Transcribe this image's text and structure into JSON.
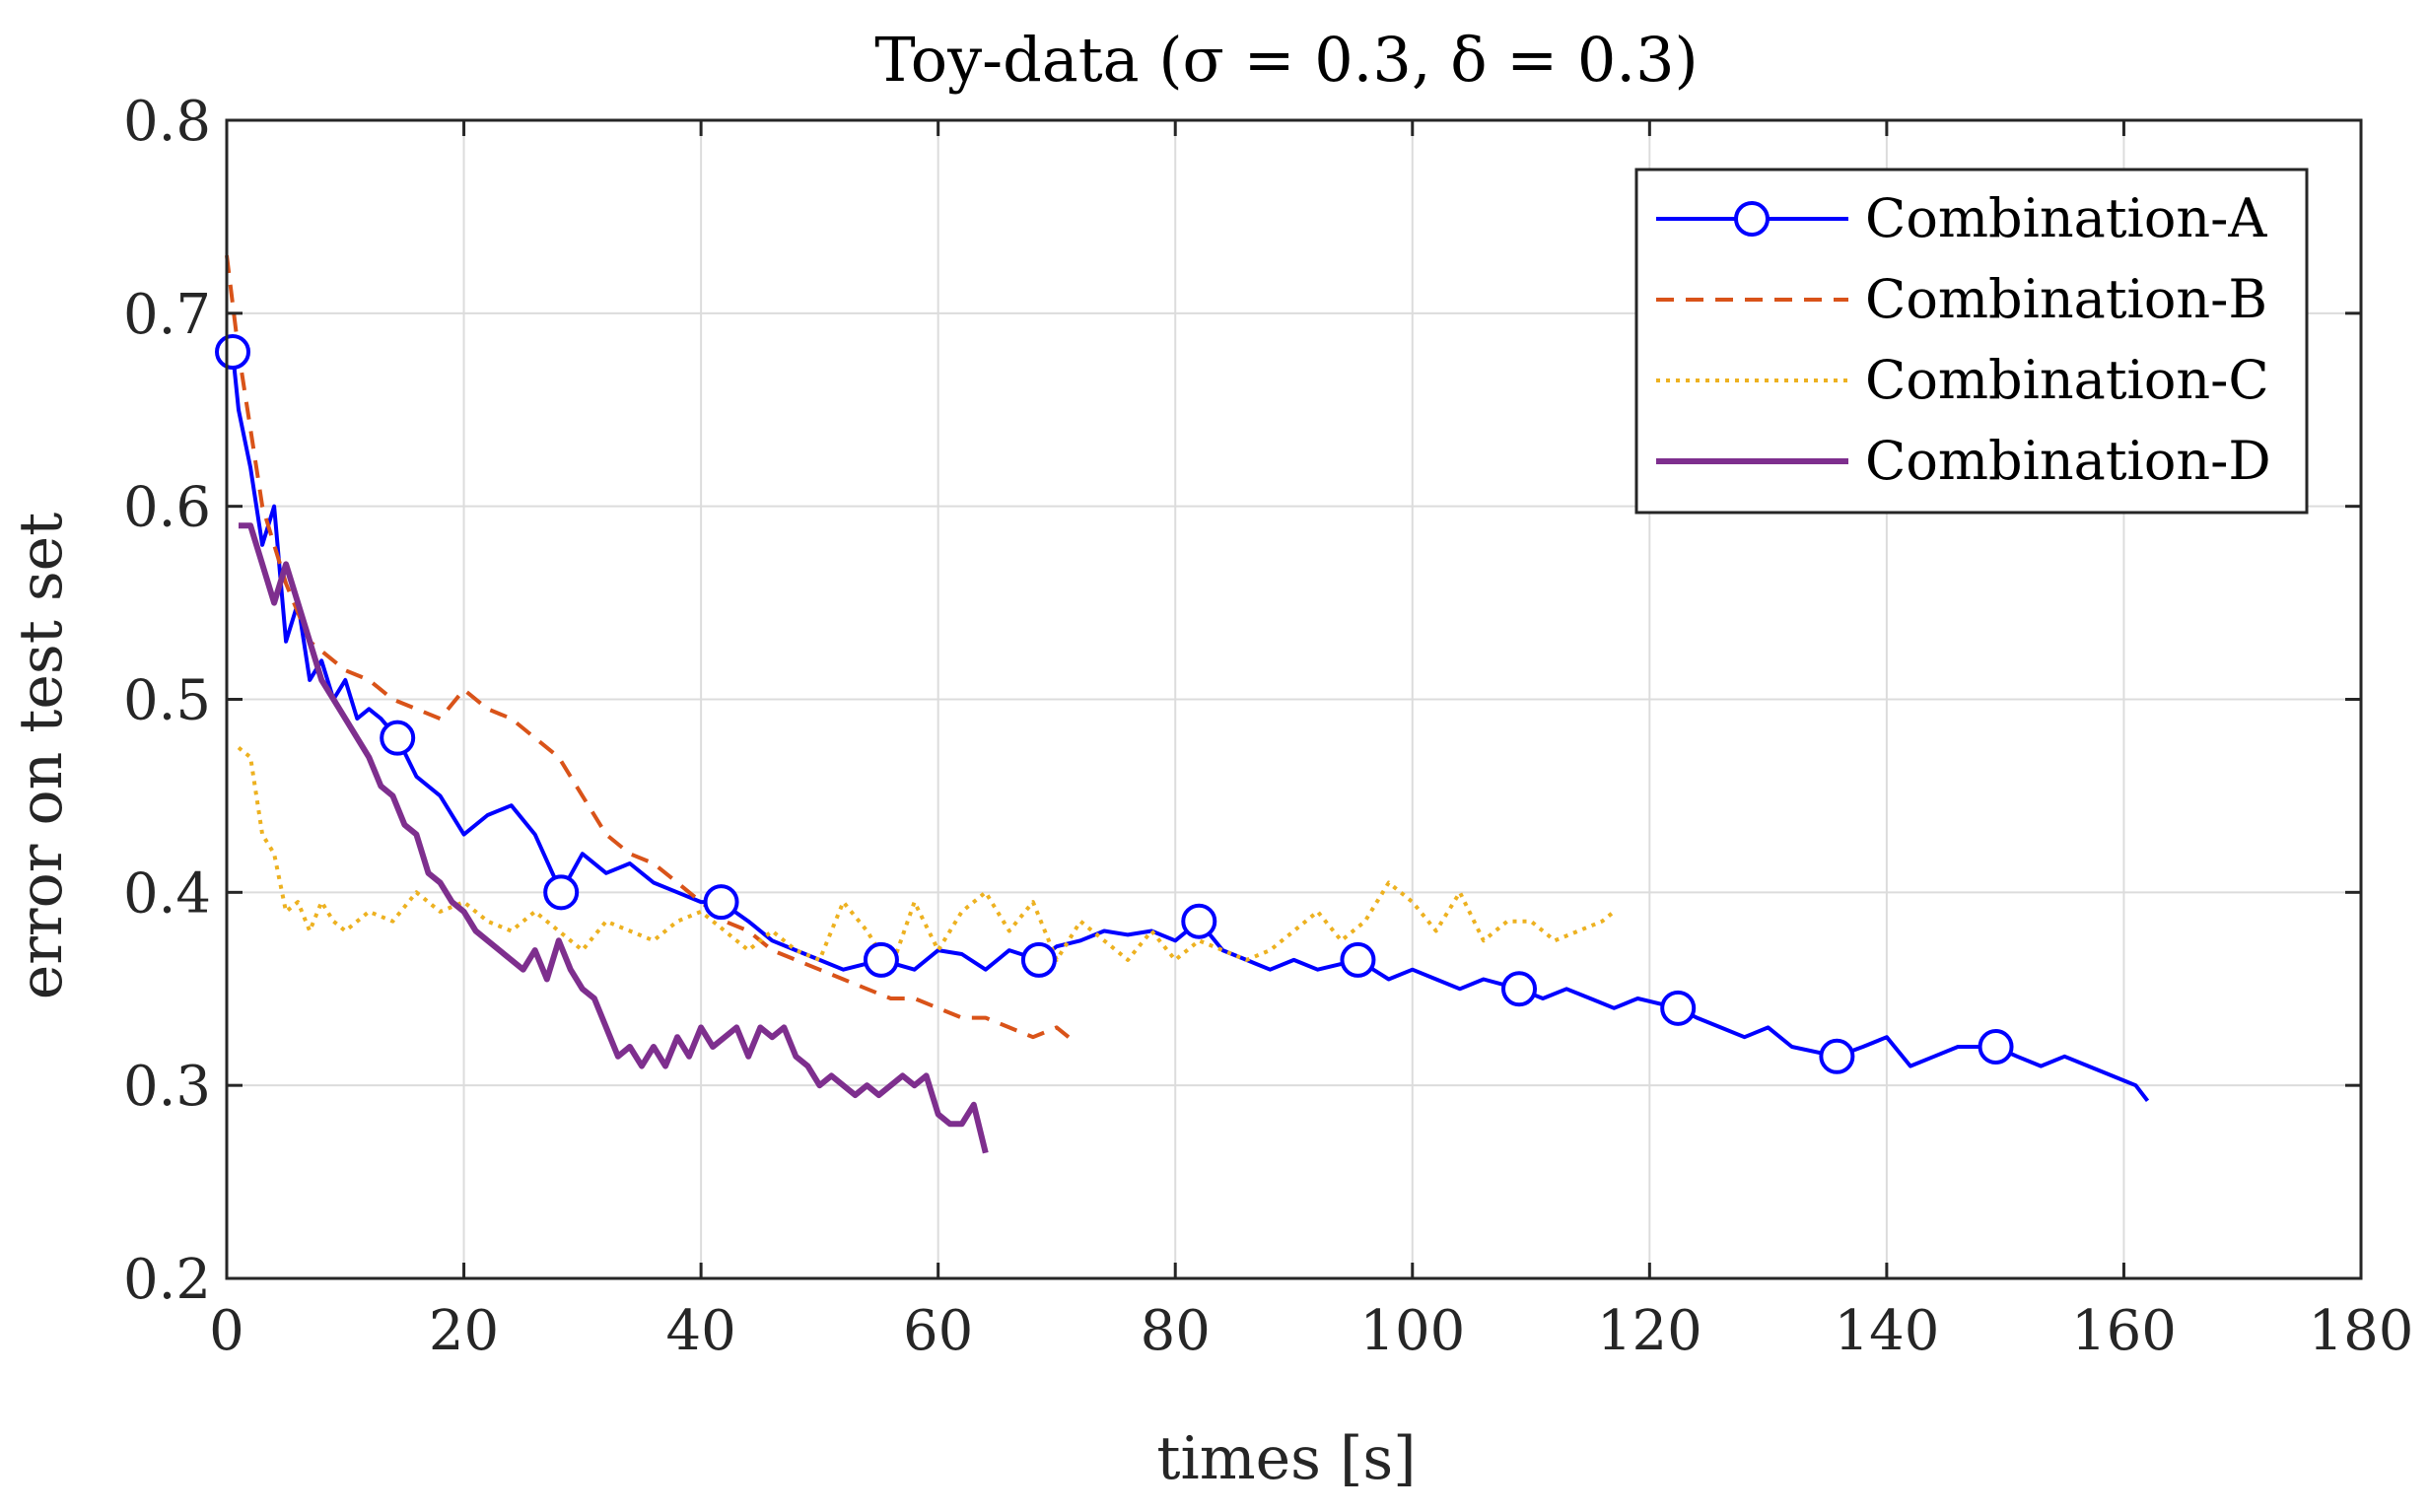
{
  "chart_data": {
    "type": "line",
    "title": "Toy-data (σ = 0.3, δ = 0.3)",
    "xlabel": "times [s]",
    "ylabel": "error on test set",
    "xlim": [
      0,
      180
    ],
    "ylim": [
      0.2,
      0.8
    ],
    "xticks": [
      0,
      20,
      40,
      60,
      80,
      100,
      120,
      140,
      160,
      180
    ],
    "yticks": [
      0.2,
      0.3,
      0.4,
      0.5,
      0.6,
      0.7,
      0.8
    ],
    "xtick_labels": [
      "0",
      "20",
      "40",
      "60",
      "80",
      "100",
      "120",
      "140",
      "160",
      "180"
    ],
    "ytick_labels": [
      "0.2",
      "0.3",
      "0.4",
      "0.5",
      "0.6",
      "0.7",
      "0.8"
    ],
    "grid": true,
    "legend_position": "top-right",
    "series": [
      {
        "name": "Combination-A",
        "color": "#0000ff",
        "style": "solid-circle",
        "x": [
          0.5,
          1,
          2,
          3,
          4,
          5,
          6,
          7,
          8,
          9,
          10,
          11,
          12,
          13,
          14.4,
          16,
          18,
          20,
          22,
          24,
          26,
          28.2,
          30,
          32,
          34,
          36,
          38,
          40,
          41.7,
          44,
          46,
          48,
          50,
          52,
          55.2,
          58,
          60,
          62,
          64,
          66,
          68.5,
          70,
          72,
          74,
          76,
          78,
          80,
          82,
          84,
          86,
          88,
          90,
          92,
          95.4,
          98,
          100,
          102,
          104,
          106,
          109,
          111,
          113,
          115,
          117,
          119,
          122.4,
          124,
          126,
          128,
          130,
          132,
          135.8,
          138,
          140,
          142,
          144,
          146,
          149.2,
          151,
          153,
          155,
          157,
          159,
          161,
          162
        ],
        "y": [
          0.68,
          0.65,
          0.62,
          0.58,
          0.6,
          0.53,
          0.55,
          0.51,
          0.52,
          0.5,
          0.51,
          0.49,
          0.495,
          0.49,
          0.48,
          0.46,
          0.45,
          0.43,
          0.44,
          0.445,
          0.43,
          0.4,
          0.42,
          0.41,
          0.415,
          0.405,
          0.4,
          0.395,
          0.395,
          0.385,
          0.375,
          0.37,
          0.365,
          0.36,
          0.365,
          0.36,
          0.37,
          0.368,
          0.36,
          0.37,
          0.365,
          0.372,
          0.375,
          0.38,
          0.378,
          0.38,
          0.375,
          0.385,
          0.37,
          0.365,
          0.36,
          0.365,
          0.36,
          0.365,
          0.355,
          0.36,
          0.355,
          0.35,
          0.355,
          0.35,
          0.345,
          0.35,
          0.345,
          0.34,
          0.345,
          0.34,
          0.335,
          0.33,
          0.325,
          0.33,
          0.32,
          0.315,
          0.32,
          0.325,
          0.31,
          0.315,
          0.32,
          0.32,
          0.315,
          0.31,
          0.315,
          0.31,
          0.305,
          0.3,
          0.292
        ]
      },
      {
        "name": "Combination-B",
        "color": "#d95319",
        "style": "dashed",
        "x": [
          0,
          1,
          2,
          3,
          4,
          5,
          6,
          7,
          8,
          10,
          12,
          14,
          16,
          18,
          20,
          22,
          24,
          26,
          28,
          30,
          32,
          34,
          36,
          38,
          40,
          42,
          44,
          46,
          48,
          50,
          52,
          54,
          56,
          58,
          60,
          62,
          64,
          66,
          68,
          70,
          71
        ],
        "y": [
          0.73,
          0.68,
          0.64,
          0.6,
          0.58,
          0.56,
          0.545,
          0.53,
          0.525,
          0.515,
          0.51,
          0.5,
          0.495,
          0.49,
          0.505,
          0.495,
          0.49,
          0.48,
          0.47,
          0.45,
          0.43,
          0.42,
          0.415,
          0.405,
          0.395,
          0.385,
          0.38,
          0.37,
          0.365,
          0.36,
          0.355,
          0.35,
          0.345,
          0.345,
          0.34,
          0.335,
          0.335,
          0.33,
          0.325,
          0.33,
          0.325
        ]
      },
      {
        "name": "Combination-C",
        "color": "#edb120",
        "style": "dotted",
        "x": [
          1,
          2,
          3,
          4,
          5,
          6,
          7,
          8,
          9,
          10,
          12,
          14,
          16,
          18,
          20,
          22,
          24,
          26,
          28,
          30,
          32,
          34,
          36,
          38,
          40,
          42,
          44,
          46,
          48,
          50,
          52,
          54,
          56,
          58,
          60,
          62,
          64,
          66,
          68,
          70,
          72,
          74,
          76,
          78,
          80,
          82,
          84,
          86,
          88,
          90,
          92,
          94,
          96,
          98,
          100,
          102,
          104,
          106,
          108,
          110,
          112,
          114,
          116,
          117
        ],
        "y": [
          0.475,
          0.47,
          0.43,
          0.42,
          0.39,
          0.395,
          0.38,
          0.395,
          0.385,
          0.38,
          0.39,
          0.385,
          0.4,
          0.39,
          0.395,
          0.385,
          0.38,
          0.39,
          0.38,
          0.37,
          0.385,
          0.38,
          0.375,
          0.385,
          0.39,
          0.38,
          0.37,
          0.38,
          0.37,
          0.365,
          0.395,
          0.38,
          0.36,
          0.395,
          0.37,
          0.39,
          0.4,
          0.38,
          0.395,
          0.365,
          0.385,
          0.375,
          0.365,
          0.38,
          0.365,
          0.375,
          0.37,
          0.365,
          0.37,
          0.38,
          0.39,
          0.375,
          0.385,
          0.405,
          0.395,
          0.38,
          0.4,
          0.375,
          0.385,
          0.385,
          0.375,
          0.38,
          0.385,
          0.39
        ]
      },
      {
        "name": "Combination-D",
        "color": "#7e2f8e",
        "style": "solid",
        "x": [
          1,
          2,
          3,
          4,
          5,
          6,
          7,
          8,
          9,
          10,
          11,
          12,
          13,
          14,
          15,
          16,
          17,
          18,
          19,
          20,
          21,
          22,
          23,
          24,
          25,
          26,
          27,
          28,
          29,
          30,
          31,
          32,
          33,
          34,
          35,
          36,
          37,
          38,
          39,
          40,
          41,
          42,
          43,
          44,
          45,
          46,
          47,
          48,
          49,
          50,
          51,
          52,
          53,
          54,
          55,
          56,
          57,
          58,
          59,
          60,
          61,
          62,
          63,
          64
        ],
        "y": [
          0.59,
          0.59,
          0.57,
          0.55,
          0.57,
          0.55,
          0.53,
          0.51,
          0.5,
          0.49,
          0.48,
          0.47,
          0.455,
          0.45,
          0.435,
          0.43,
          0.41,
          0.405,
          0.395,
          0.39,
          0.38,
          0.375,
          0.37,
          0.365,
          0.36,
          0.37,
          0.355,
          0.375,
          0.36,
          0.35,
          0.345,
          0.33,
          0.315,
          0.32,
          0.31,
          0.32,
          0.31,
          0.325,
          0.315,
          0.33,
          0.32,
          0.325,
          0.33,
          0.315,
          0.33,
          0.325,
          0.33,
          0.315,
          0.31,
          0.3,
          0.305,
          0.3,
          0.295,
          0.3,
          0.295,
          0.3,
          0.305,
          0.3,
          0.305,
          0.285,
          0.28,
          0.28,
          0.29,
          0.265
        ]
      }
    ]
  }
}
